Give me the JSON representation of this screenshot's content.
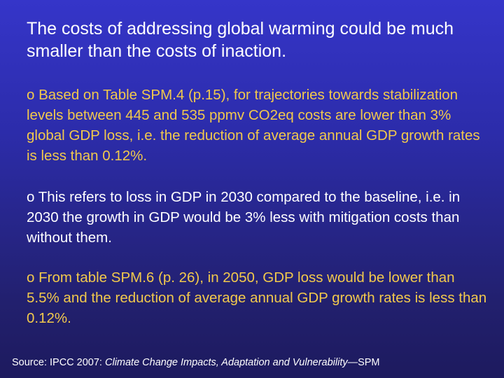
{
  "slide": {
    "title": "The costs of addressing global warming could be much smaller than the costs of inaction.",
    "bullets": [
      {
        "marker": "o",
        "text": "Based on Table SPM.4 (p.15), for trajectories towards stabilization levels between 445 and 535 ppmv CO2eq costs are lower than 3% global GDP loss, i.e. the reduction of average annual GDP growth rates is less than 0.12%.",
        "color": "#f2c94c"
      },
      {
        "marker": "o",
        "text": "This refers to loss in GDP in 2030 compared to the baseline, i.e. in 2030 the growth in GDP would be 3% less with mitigation costs than without them.",
        "color": "#ffffff"
      },
      {
        "marker": "o",
        "text": "From table SPM.6 (p. 26), in 2050, GDP loss would be lower than 5.5% and the reduction of average annual GDP growth rates is less than 0.12%.",
        "color": "#f2c94c"
      }
    ],
    "source": {
      "prefix": "Source: IPCC 2007: ",
      "title_italic": "Climate Change Impacts, Adaptation and Vulnerability",
      "suffix": "—SPM"
    },
    "colors": {
      "background_top": "#3535c9",
      "background_bottom": "#1d1a5e",
      "title_text": "#ffffff",
      "accent_text": "#f2c94c"
    }
  }
}
